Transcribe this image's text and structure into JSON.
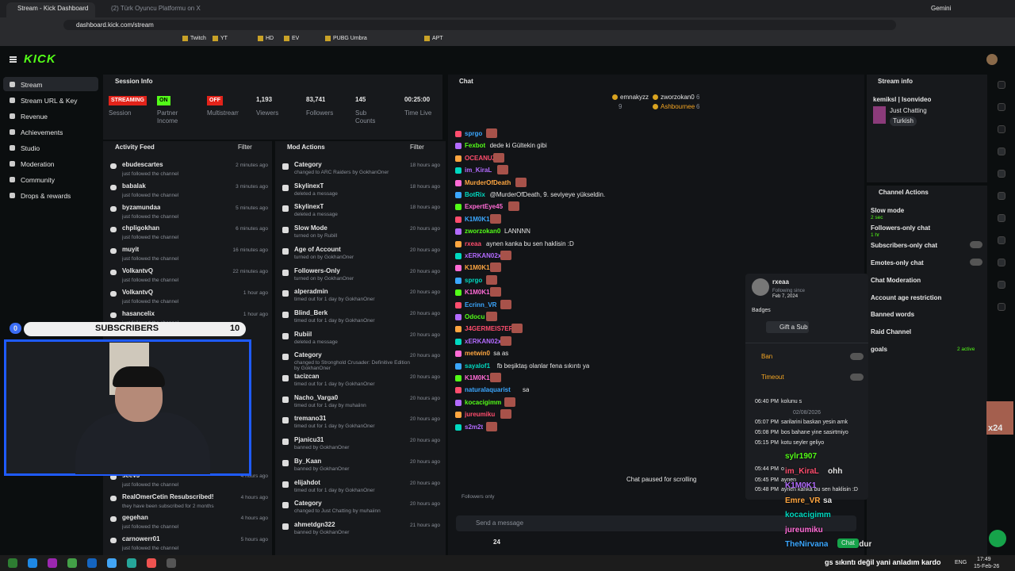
{
  "browser": {
    "tabs": [
      "Stream - Kick Dashboard",
      "(2) Türk Oyuncu Platformu on X"
    ],
    "url": "dashboard.kick.com/stream",
    "bookmarks": [
      "Twitch",
      "YT",
      "HD",
      "EV",
      "PUBG Umbra",
      "APT"
    ],
    "assistant": "Gemini"
  },
  "header": {
    "logo": "KICK"
  },
  "nav": [
    "Stream",
    "Stream URL & Key",
    "Revenue",
    "Achievements",
    "Studio",
    "Moderation",
    "Community",
    "Drops & rewards"
  ],
  "session_info": {
    "title": "Session Info",
    "stats": [
      {
        "value": "STREAMING",
        "label": "Session"
      },
      {
        "value": "ON",
        "label": "Partner Income"
      },
      {
        "value": "OFF",
        "label": "Multistream"
      },
      {
        "value": "1,193",
        "label": "Viewers"
      },
      {
        "value": "83,741",
        "label": "Followers"
      },
      {
        "value": "145",
        "label": "Sub Counts"
      },
      {
        "value": "00:25:00",
        "label": "Time Live"
      }
    ]
  },
  "activity_feed": {
    "title": "Activity Feed",
    "filter": "Filter",
    "items": [
      {
        "name": "ebudescartes",
        "action": "just followed the channel",
        "time": "2 minutes ago"
      },
      {
        "name": "babalak",
        "action": "just followed the channel",
        "time": "3 minutes ago"
      },
      {
        "name": "byzamundaa",
        "action": "just followed the channel",
        "time": "5 minutes ago"
      },
      {
        "name": "chpligokhan",
        "action": "just followed the channel",
        "time": "6 minutes ago"
      },
      {
        "name": "muyit",
        "action": "just followed the channel",
        "time": "16 minutes ago"
      },
      {
        "name": "VolkantvQ",
        "action": "just followed the channel",
        "time": "22 minutes ago"
      },
      {
        "name": "VolkantvQ",
        "action": "just followed the channel",
        "time": "1 hour ago"
      },
      {
        "name": "hasancelix",
        "action": "just followed the channel",
        "time": "1 hour ago"
      },
      {
        "name": "seev3",
        "action": "just followed the channel",
        "time": "4 hours ago"
      },
      {
        "name": "RealOmerCetin Resubscribed!",
        "action": "they have been subscribed for 2 months",
        "time": "4 hours ago"
      },
      {
        "name": "gegehan",
        "action": "just followed the channel",
        "time": "4 hours ago"
      },
      {
        "name": "carnowerr01",
        "action": "just followed the channel",
        "time": "5 hours ago"
      }
    ]
  },
  "mod_actions": {
    "title": "Mod Actions",
    "filter": "Filter",
    "items": [
      {
        "title": "Category",
        "detail": "changed to ARC Raiders by GokhanOner",
        "time": "18 hours ago"
      },
      {
        "title": "SkylinexT",
        "detail": "deleted a message",
        "time": "18 hours ago"
      },
      {
        "title": "SkylinexT",
        "detail": "deleted a message",
        "time": "18 hours ago"
      },
      {
        "title": "Slow Mode",
        "detail": "turned on by Rubill",
        "time": "20 hours ago"
      },
      {
        "title": "Age of Account",
        "detail": "turned on by GokhanOner",
        "time": "20 hours ago"
      },
      {
        "title": "Followers-Only",
        "detail": "turned on by GokhanOner",
        "time": "20 hours ago"
      },
      {
        "title": "alperadmin",
        "detail": "timed out for 1 day by GokhanOner",
        "time": "20 hours ago"
      },
      {
        "title": "Blind_Berk",
        "detail": "timed out for 1 day by GokhanOner",
        "time": "20 hours ago"
      },
      {
        "title": "Rubiil",
        "detail": "deleted a message",
        "time": "20 hours ago"
      },
      {
        "title": "Category",
        "detail": "changed to Stronghold Crusader: Definitive Edition by GokhanOner",
        "time": "20 hours ago"
      },
      {
        "title": "tacizcan",
        "detail": "timed out for 1 day by GokhanOner",
        "time": "20 hours ago"
      },
      {
        "title": "Nacho_Varga0",
        "detail": "timed out for 1 day by muhaiinn",
        "time": "20 hours ago"
      },
      {
        "title": "tremano31",
        "detail": "timed out for 1 day by GokhanOner",
        "time": "20 hours ago"
      },
      {
        "title": "Pjanicu31",
        "detail": "banned by GokhanOner",
        "time": "20 hours ago"
      },
      {
        "title": "By_Kaan",
        "detail": "banned by GokhanOner",
        "time": "20 hours ago"
      },
      {
        "title": "elijahdot",
        "detail": "timed out for 1 day by GokhanOner",
        "time": "20 hours ago"
      },
      {
        "title": "Category",
        "detail": "changed to Just Chatting by muhaiinn",
        "time": "20 hours ago"
      },
      {
        "title": "ahmetdgn322",
        "detail": "banned by GokhanOner",
        "time": "21 hours ago"
      }
    ]
  },
  "chat": {
    "title": "Chat",
    "top_chatters": [
      {
        "name": "emnakyzz",
        "count": "9"
      },
      {
        "name": "zworzokan0",
        "count": "6"
      },
      {
        "name": "Ashbournee",
        "count": "6"
      }
    ],
    "messages": [
      {
        "user": "sprgo"
      },
      {
        "user": "Fexbot",
        "text": "dede ki Gültekin gibi"
      },
      {
        "user": "OCEANUZ"
      },
      {
        "user": "im_KiraL"
      },
      {
        "user": "MurderOfDeath"
      },
      {
        "user": "BotRix",
        "text": "@MurderOfDeath, 9. seviyeye yükseldin."
      },
      {
        "user": "ExpertEye45"
      },
      {
        "user": "K1M0K1"
      },
      {
        "user": "zworzokan0",
        "text": "LANNNN"
      },
      {
        "user": "rxeaa",
        "text": "aynen kanka bu sen haklisin :D"
      },
      {
        "user": "xERKAN02x"
      },
      {
        "user": "K1M0K1"
      },
      {
        "user": "sprgo"
      },
      {
        "user": "K1M0K1"
      },
      {
        "user": "Ecrinn_VR"
      },
      {
        "user": "Odocu"
      },
      {
        "user": "J4GERMEIS7ER"
      },
      {
        "user": "xERKAN02x"
      },
      {
        "user": "metwin0",
        "text": "sa as"
      },
      {
        "user": "sayalof1",
        "text": "fb beşiktaş olanlar fena sıkıntı ya"
      },
      {
        "user": "K1M0K1"
      },
      {
        "user": "naturalaquarist",
        "text": "sa"
      },
      {
        "user": "kocacigimm"
      },
      {
        "user": "jureumiku"
      },
      {
        "user": "s2m2t"
      }
    ],
    "paused": "Chat paused for scrolling",
    "followers_only": "Followers only",
    "placeholder": "Send a message",
    "count": "24"
  },
  "stream_info": {
    "title": "Stream info",
    "channel": "kemiksl | Isonvideo",
    "category": "Just Chatting",
    "tag": "Turkish"
  },
  "channel_actions": {
    "title": "Channel Actions",
    "items": [
      {
        "name": "Slow mode",
        "sub": "2 sec"
      },
      {
        "name": "Followers-only chat",
        "sub": "1 hr"
      },
      {
        "name": "Subscribers-only chat"
      },
      {
        "name": "Emotes-only chat"
      },
      {
        "name": "Chat Moderation"
      },
      {
        "name": "Account age restriction"
      },
      {
        "name": "Banned words"
      },
      {
        "name": "Raid Channel"
      },
      {
        "name": "goals",
        "sub": "2 active"
      }
    ]
  },
  "user_card": {
    "name": "rxeaa",
    "following_label": "Following since",
    "following_date": "Feb 7, 2024",
    "badges": "Badges",
    "gift": "Gift a Sub",
    "ban": "Ban",
    "timeout": "Timeout",
    "date_divider": "02/08/2026",
    "history": [
      {
        "time": "06:40 PM",
        "text": "kolunu s"
      },
      {
        "time": "05:07 PM",
        "text": "sarilarini baskan yesin amk"
      },
      {
        "time": "05:08 PM",
        "text": "bos bahane yine sasirtmiyo"
      },
      {
        "time": "05:15 PM",
        "text": "kotu seyler geliyo"
      },
      {
        "time": "05:44 PM",
        "text": "o"
      },
      {
        "time": "05:45 PM",
        "text": "aynen"
      },
      {
        "time": "05:48 PM",
        "text": "aynen kanka bu sen haklisin :D"
      }
    ]
  },
  "overlay": {
    "subscribers": "SUBSCRIBERS",
    "sub_current": "0",
    "sub_goal": "10",
    "badge": "x24",
    "chat": [
      {
        "user": "sylr1907"
      },
      {
        "user": "im_KiraL",
        "text": "ohh"
      },
      {
        "user": "K1M0K1"
      },
      {
        "user": "Emre_VR",
        "text": "sa"
      },
      {
        "user": "kocacigimm"
      },
      {
        "user": "jureumiku"
      },
      {
        "user": "TheNirvana",
        "text": "IQsuzdur"
      }
    ],
    "ticker": "gs sıkıntı değil yani anladım kardo",
    "chat_button": "Chat"
  },
  "taskbar": {
    "lang": "ENG",
    "time": "17:49",
    "date": "15-Feb-26"
  }
}
